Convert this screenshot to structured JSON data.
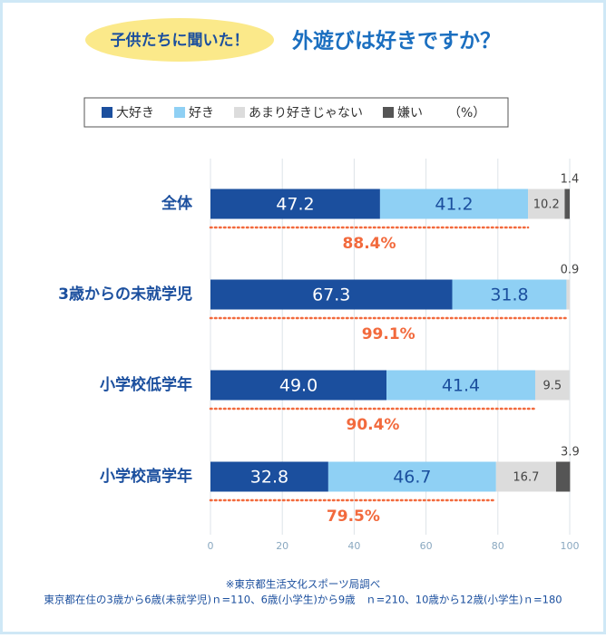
{
  "chart_data": {
    "type": "bar",
    "orientation": "horizontal",
    "stacked": true,
    "badge": "子供たちに聞いた！",
    "title": "外遊びは好きですか？",
    "unit_label": "（%）",
    "categories": [
      "全体",
      "3歳からの未就学児",
      "小学校低学年",
      "小学校高学年"
    ],
    "series": [
      {
        "name": "大好き",
        "color": "#1b4f9e",
        "label_color": "#ffffff",
        "values": [
          47.2,
          67.3,
          49.0,
          32.8
        ],
        "value_labels": [
          "47.2",
          "67.3",
          "49.0",
          "32.8"
        ]
      },
      {
        "name": "好き",
        "color": "#8fd0f4",
        "label_color": "#1b4f9e",
        "values": [
          41.2,
          31.8,
          41.4,
          46.7
        ],
        "value_labels": [
          "41.2",
          "31.8",
          "41.4",
          "46.7"
        ]
      },
      {
        "name": "あまり好きじゃない",
        "color": "#dcdcdc",
        "label_color": "#444444",
        "values": [
          10.2,
          0.9,
          9.5,
          16.7
        ],
        "value_labels": [
          "10.2",
          "0.9",
          "9.5",
          "16.7"
        ]
      },
      {
        "name": "嫌い",
        "color": "#555555",
        "label_color": "#444444",
        "values": [
          1.4,
          0,
          0,
          3.9
        ],
        "value_labels": [
          "1.4",
          null,
          null,
          "3.9"
        ]
      }
    ],
    "combined": {
      "color": "#f26a3d",
      "values": [
        88.4,
        99.1,
        90.4,
        79.5
      ],
      "value_labels": [
        "88.4%",
        "99.1%",
        "90.4%",
        "79.5%"
      ]
    },
    "xlim": [
      0,
      100
    ],
    "xticks": [
      0,
      20,
      40,
      60,
      80,
      100
    ],
    "grid": true,
    "source": [
      "※東京都生活文化スポーツ局調べ",
      "東京都在住の3歳から6歳(未就学児)ｎ=110、6歳(小学生)から9歳　ｎ=210、10歳から12歳(小学生)ｎ=180"
    ]
  }
}
